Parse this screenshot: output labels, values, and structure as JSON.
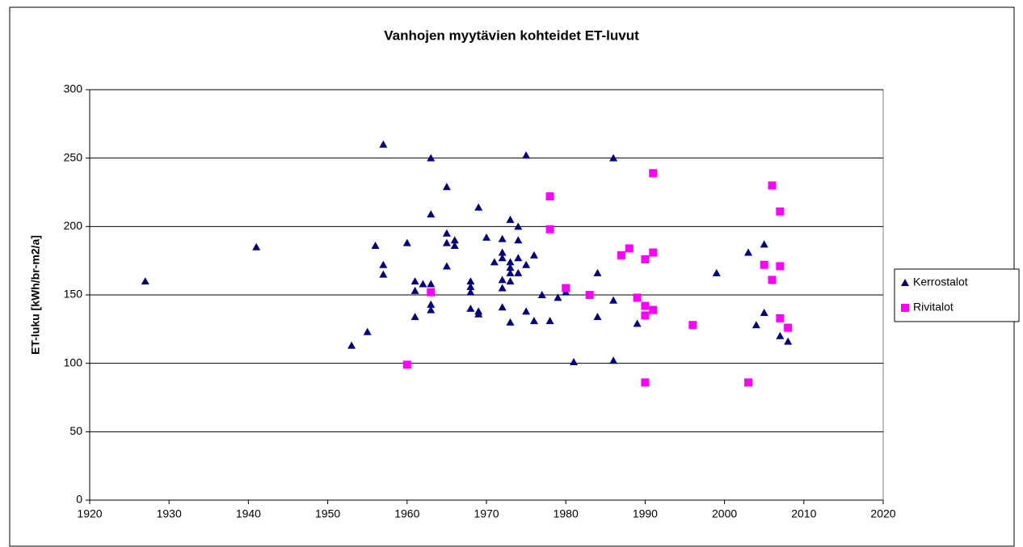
{
  "chart_data": {
    "type": "scatter",
    "title": "Vanhojen myytävien kohteidet ET-luvut",
    "y_label": "ET-luku [kWh/br-m2/a]",
    "xlim": [
      1920,
      2020
    ],
    "xticks": [
      1920,
      1930,
      1940,
      1950,
      1960,
      1970,
      1980,
      1990,
      2000,
      2010,
      2020
    ],
    "ylim": [
      0,
      300
    ],
    "yticks": [
      0,
      50,
      100,
      150,
      200,
      250,
      300
    ],
    "grid": true,
    "legend": "right",
    "series": [
      {
        "name": "Kerrostalot",
        "color": "#000080",
        "marker": "triangle",
        "x": [
          1927,
          1941,
          1953,
          1955,
          1956,
          1957,
          1957,
          1957,
          1960,
          1961,
          1961,
          1961,
          1962,
          1963,
          1963,
          1963,
          1963,
          1963,
          1963,
          1965,
          1965,
          1965,
          1965,
          1966,
          1966,
          1968,
          1968,
          1968,
          1968,
          1969,
          1969,
          1969,
          1970,
          1971,
          1972,
          1972,
          1972,
          1972,
          1972,
          1972,
          1973,
          1973,
          1973,
          1973,
          1973,
          1973,
          1974,
          1974,
          1974,
          1974,
          1975,
          1975,
          1975,
          1976,
          1976,
          1977,
          1978,
          1979,
          1980,
          1981,
          1984,
          1984,
          1986,
          1986,
          1986,
          1989,
          1999,
          2003,
          2004,
          2005,
          2005,
          2007,
          2008
        ],
        "values": [
          160,
          185,
          113,
          123,
          186,
          260,
          172,
          165,
          188,
          160,
          153,
          134,
          158,
          250,
          158,
          152,
          143,
          139,
          209,
          229,
          195,
          188,
          171,
          190,
          186,
          160,
          156,
          152,
          140,
          214,
          138,
          136,
          192,
          174,
          191,
          181,
          177,
          161,
          155,
          141,
          205,
          174,
          170,
          166,
          160,
          130,
          200,
          190,
          177,
          166,
          252,
          172,
          138,
          179,
          131,
          150,
          131,
          148,
          152,
          101,
          134,
          166,
          250,
          146,
          102,
          129,
          166,
          181,
          128,
          187,
          137,
          120,
          116
        ]
      },
      {
        "name": "Rivitalot",
        "color": "#ff00ff",
        "marker": "square",
        "x": [
          1960,
          1963,
          1978,
          1978,
          1980,
          1983,
          1987,
          1988,
          1989,
          1990,
          1990,
          1990,
          1990,
          1991,
          1991,
          1991,
          1996,
          2003,
          2005,
          2006,
          2006,
          2007,
          2007,
          2007,
          2008
        ],
        "values": [
          99,
          152,
          222,
          198,
          155,
          150,
          179,
          184,
          148,
          176,
          142,
          135,
          86,
          239,
          181,
          139,
          128,
          86,
          172,
          230,
          161,
          211,
          171,
          133,
          126
        ]
      }
    ]
  }
}
